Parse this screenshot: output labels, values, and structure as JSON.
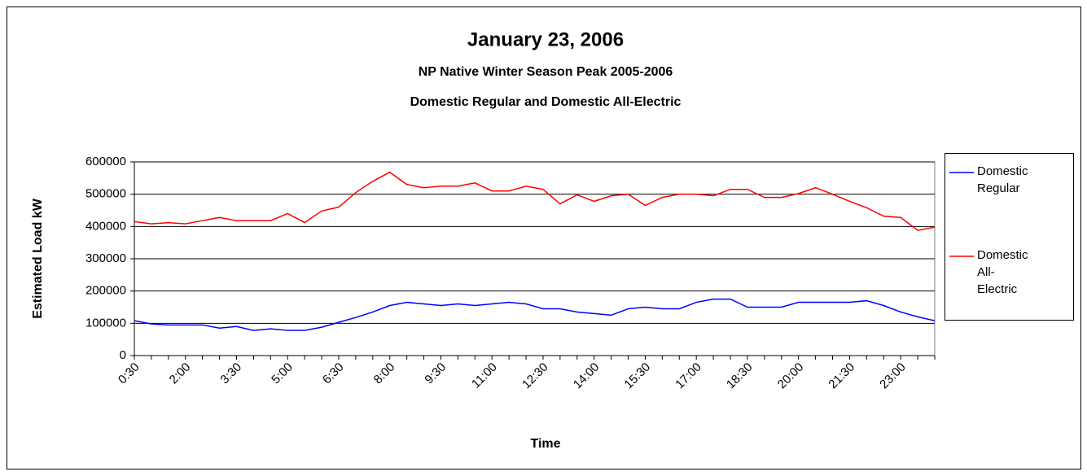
{
  "chart_data": {
    "type": "line",
    "title": "January 23, 2006",
    "subtitle": [
      "NP Native Winter Season Peak 2005-2006",
      "Domestic Regular and Domestic All-Electric"
    ],
    "x_label": "Time",
    "y_label": "Estimated Load kW",
    "categories": [
      "0:30",
      null,
      null,
      "2:00",
      null,
      null,
      "3:30",
      null,
      null,
      "5:00",
      null,
      null,
      "6:30",
      null,
      null,
      "8:00",
      null,
      null,
      "9:30",
      null,
      null,
      "11:00",
      null,
      null,
      "12:30",
      null,
      null,
      "14:00",
      null,
      null,
      "15:30",
      null,
      null,
      "17:00",
      null,
      null,
      "18:30",
      null,
      null,
      "20:00",
      null,
      null,
      "21:30",
      null,
      null,
      "23:00",
      null,
      null
    ],
    "series": [
      {
        "name": "Domestic Regular",
        "color": "#0000ff",
        "values": [
          108000,
          98000,
          95000,
          95000,
          95000,
          85000,
          90000,
          78000,
          83000,
          78000,
          78000,
          88000,
          103000,
          118000,
          135000,
          155000,
          165000,
          160000,
          155000,
          160000,
          155000,
          160000,
          165000,
          160000,
          145000,
          145000,
          135000,
          130000,
          125000,
          145000,
          150000,
          145000,
          145000,
          165000,
          175000,
          175000,
          150000,
          150000,
          150000,
          165000,
          165000,
          165000,
          165000,
          170000,
          155000,
          135000,
          120000,
          108000
        ]
      },
      {
        "name": "Domestic All-Electric",
        "color": "#ff0000",
        "values": [
          415000,
          408000,
          412000,
          408000,
          418000,
          428000,
          418000,
          418000,
          418000,
          440000,
          412000,
          448000,
          460000,
          505000,
          540000,
          568000,
          530000,
          520000,
          525000,
          525000,
          535000,
          510000,
          510000,
          525000,
          515000,
          470000,
          498000,
          478000,
          495000,
          500000,
          465000,
          490000,
          500000,
          500000,
          495000,
          515000,
          515000,
          490000,
          490000,
          502000,
          520000,
          500000,
          478000,
          458000,
          432000,
          428000,
          388000,
          398000
        ]
      }
    ],
    "ylim": [
      0,
      600000
    ],
    "yticks": [
      0,
      100000,
      200000,
      300000,
      400000,
      500000,
      600000
    ],
    "grid": true,
    "legend": "right"
  }
}
